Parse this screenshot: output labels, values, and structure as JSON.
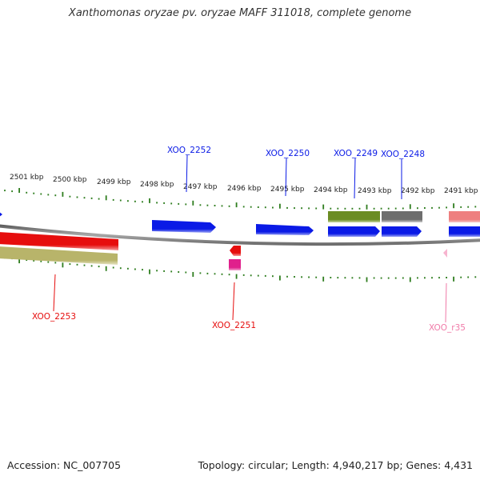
{
  "title": "Xanthomonas oryzae pv. oryzae MAFF 311018, complete genome",
  "footer": {
    "accession": "Accession: NC_007705",
    "topology": "Topology: circular; Length: 4,940,217 bp; Genes: 4,431"
  },
  "colors": {
    "backbone": "#8a8a8a",
    "tick": "#2e7d1e",
    "cds_blue": "#0a1ae6",
    "cds_red": "#e60d0d",
    "olive_green": "#6b8c23",
    "khaki": "#b8b46a",
    "gray": "#6e6e6e",
    "salmon": "#ee7f7f",
    "magenta": "#e0208c",
    "rna_pink": "#f07aa8"
  },
  "ticks": [
    "2501 kbp",
    "2500 kbp",
    "2499 kbp",
    "2498 kbp",
    "2497 kbp",
    "2496 kbp",
    "2495 kbp",
    "2494 kbp",
    "2493 kbp",
    "2492 kbp",
    "2491 kbp"
  ],
  "genes": {
    "g2252": "XOO_2252",
    "g2250": "XOO_2250",
    "g2249": "XOO_2249",
    "g2248": "XOO_2248",
    "g2253": "XOO_2253",
    "g2251": "XOO_2251",
    "gr35": "XOO_r35"
  }
}
